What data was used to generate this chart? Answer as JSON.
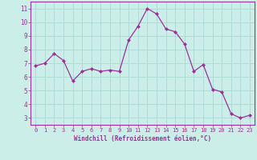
{
  "x": [
    0,
    1,
    2,
    3,
    4,
    5,
    6,
    7,
    8,
    9,
    10,
    11,
    12,
    13,
    14,
    15,
    16,
    17,
    18,
    19,
    20,
    21,
    22,
    23
  ],
  "y": [
    6.8,
    7.0,
    7.7,
    7.2,
    5.7,
    6.4,
    6.6,
    6.4,
    6.5,
    6.4,
    8.7,
    9.7,
    11.0,
    10.6,
    9.5,
    9.3,
    8.4,
    6.4,
    6.9,
    5.1,
    4.9,
    3.3,
    3.0,
    3.2
  ],
  "line_color": "#993399",
  "marker": "D",
  "marker_size": 2.0,
  "bg_color": "#cceee8",
  "grid_color": "#aad8d4",
  "xlabel": "Windchill (Refroidissement éolien,°C)",
  "xlabel_color": "#993399",
  "tick_color": "#993399",
  "ylim": [
    2.5,
    11.5
  ],
  "xlim": [
    -0.5,
    23.5
  ],
  "yticks": [
    3,
    4,
    5,
    6,
    7,
    8,
    9,
    10,
    11
  ],
  "xticks": [
    0,
    1,
    2,
    3,
    4,
    5,
    6,
    7,
    8,
    9,
    10,
    11,
    12,
    13,
    14,
    15,
    16,
    17,
    18,
    19,
    20,
    21,
    22,
    23
  ],
  "spine_color": "#993399"
}
